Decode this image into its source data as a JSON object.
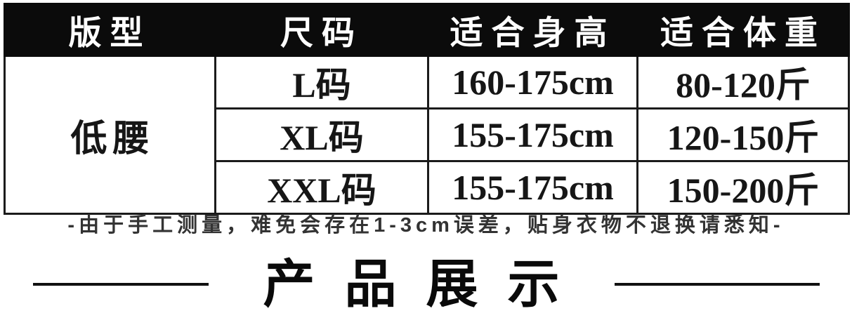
{
  "size_chart": {
    "headers": [
      "版型",
      "尺码",
      "适合身高",
      "适合体重"
    ],
    "fit_type": "低腰",
    "rows": [
      {
        "size": "L码",
        "height": "160-175cm",
        "weight": "80-120斤"
      },
      {
        "size": "XL码",
        "height": "155-175cm",
        "weight": "120-150斤"
      },
      {
        "size": "XXL码",
        "height": "155-175cm",
        "weight": "150-200斤"
      }
    ]
  },
  "note": "-由于手工测量，难免会存在1-3cm误差，贴身衣物不退换请悉知-",
  "section_title": "产品展示",
  "colors": {
    "header_bg": "#0b0b0b",
    "header_text": "#fefefe",
    "border": "#1b1b1b",
    "body_text": "#161616",
    "note_text": "#333333",
    "divider_line": "#111111"
  }
}
